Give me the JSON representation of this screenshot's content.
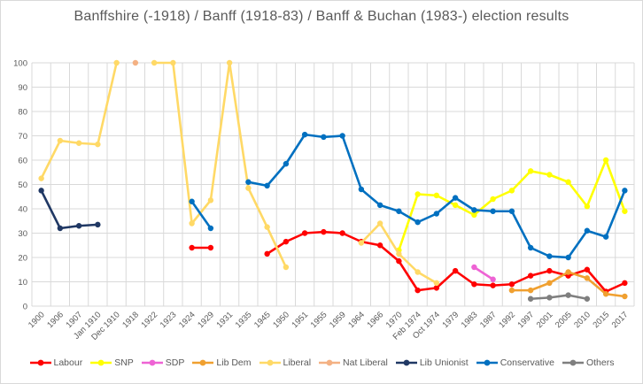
{
  "chart_data": {
    "type": "line",
    "title": "Banffshire (-1918) / Banff (1918-83) / Banff & Buchan (1983-) election results",
    "xlabel": "",
    "ylabel": "",
    "ylim": [
      0,
      100
    ],
    "yticks": [
      0,
      10,
      20,
      30,
      40,
      50,
      60,
      70,
      80,
      90,
      100
    ],
    "grid": true,
    "legend_position": "bottom",
    "categories": [
      "1900",
      "1906",
      "1907",
      "Jan 1910",
      "Dec 1910",
      "1918",
      "1922",
      "1923",
      "1924",
      "1929",
      "1931",
      "1935",
      "1945",
      "1950",
      "1951",
      "1955",
      "1959",
      "1964",
      "1966",
      "1970",
      "Feb 1974",
      "Oct 1974",
      "1979",
      "1983",
      "1987",
      "1992",
      "1997",
      "2001",
      "2005",
      "2010",
      "2015",
      "2017"
    ],
    "series": [
      {
        "name": "Labour",
        "color": "#FF0000",
        "values": [
          null,
          null,
          null,
          null,
          null,
          null,
          null,
          null,
          24,
          24,
          null,
          null,
          21.5,
          26.5,
          30,
          30.5,
          30,
          26.5,
          25,
          18.5,
          6.5,
          7.5,
          14.5,
          9,
          8.5,
          9,
          12.5,
          14.5,
          12.5,
          15,
          6,
          9.5
        ]
      },
      {
        "name": "SNP",
        "color": "#FFFF00",
        "values": [
          null,
          null,
          null,
          null,
          null,
          null,
          null,
          null,
          null,
          null,
          null,
          null,
          null,
          null,
          null,
          null,
          null,
          null,
          null,
          23,
          46,
          45.5,
          41.5,
          37.5,
          44,
          47.5,
          55.5,
          54,
          51,
          41,
          60,
          39
        ]
      },
      {
        "name": "SDP",
        "color": "#EE63D4",
        "values": [
          null,
          null,
          null,
          null,
          null,
          null,
          null,
          null,
          null,
          null,
          null,
          null,
          null,
          null,
          null,
          null,
          null,
          null,
          null,
          null,
          null,
          null,
          null,
          16,
          11,
          null,
          null,
          null,
          null,
          null,
          null,
          null
        ]
      },
      {
        "name": "Lib Dem",
        "color": "#F0A030",
        "values": [
          null,
          null,
          null,
          null,
          null,
          null,
          null,
          null,
          null,
          null,
          null,
          null,
          null,
          null,
          null,
          null,
          null,
          null,
          null,
          null,
          null,
          null,
          null,
          null,
          null,
          6.5,
          6.5,
          9.5,
          14,
          11.5,
          5,
          4
        ]
      },
      {
        "name": "Liberal",
        "color": "#FFD966",
        "values": [
          52.5,
          68,
          67,
          66.5,
          100,
          null,
          100,
          100,
          34,
          43.5,
          100,
          48.5,
          32.5,
          16,
          null,
          null,
          null,
          26,
          34,
          21.5,
          14,
          9.5,
          null,
          null,
          null,
          null,
          null,
          null,
          null,
          null,
          null,
          null
        ]
      },
      {
        "name": "Nat Liberal",
        "color": "#F4B183",
        "values": [
          null,
          null,
          null,
          null,
          null,
          100,
          null,
          null,
          null,
          null,
          null,
          null,
          null,
          null,
          null,
          null,
          null,
          null,
          null,
          null,
          null,
          null,
          null,
          null,
          null,
          null,
          null,
          null,
          null,
          null,
          null,
          null
        ]
      },
      {
        "name": "Lib Unionist",
        "color": "#203864",
        "values": [
          47.5,
          32,
          33,
          33.5,
          null,
          null,
          null,
          null,
          null,
          null,
          null,
          null,
          null,
          null,
          null,
          null,
          null,
          null,
          null,
          null,
          null,
          null,
          null,
          null,
          null,
          null,
          null,
          null,
          null,
          null,
          null,
          null
        ]
      },
      {
        "name": "Conservative",
        "color": "#0070C0",
        "values": [
          null,
          null,
          null,
          null,
          null,
          null,
          null,
          null,
          43,
          32,
          null,
          51,
          49.5,
          58.5,
          70.5,
          69.5,
          70,
          48,
          41.5,
          39,
          34.5,
          38,
          44.5,
          39.5,
          39,
          39,
          24,
          20.5,
          20,
          31,
          28.5,
          47.5
        ]
      },
      {
        "name": "Others",
        "color": "#7F7F7F",
        "values": [
          null,
          null,
          null,
          null,
          null,
          null,
          null,
          null,
          null,
          null,
          null,
          null,
          null,
          null,
          null,
          null,
          null,
          null,
          null,
          null,
          null,
          null,
          null,
          null,
          null,
          null,
          3,
          3.5,
          4.5,
          3,
          null,
          null
        ]
      }
    ],
    "style": {
      "grid_color": "#D9D9D9",
      "axis_text_color": "#595959",
      "title_color": "#595959",
      "background": "#FFFFFF"
    }
  }
}
